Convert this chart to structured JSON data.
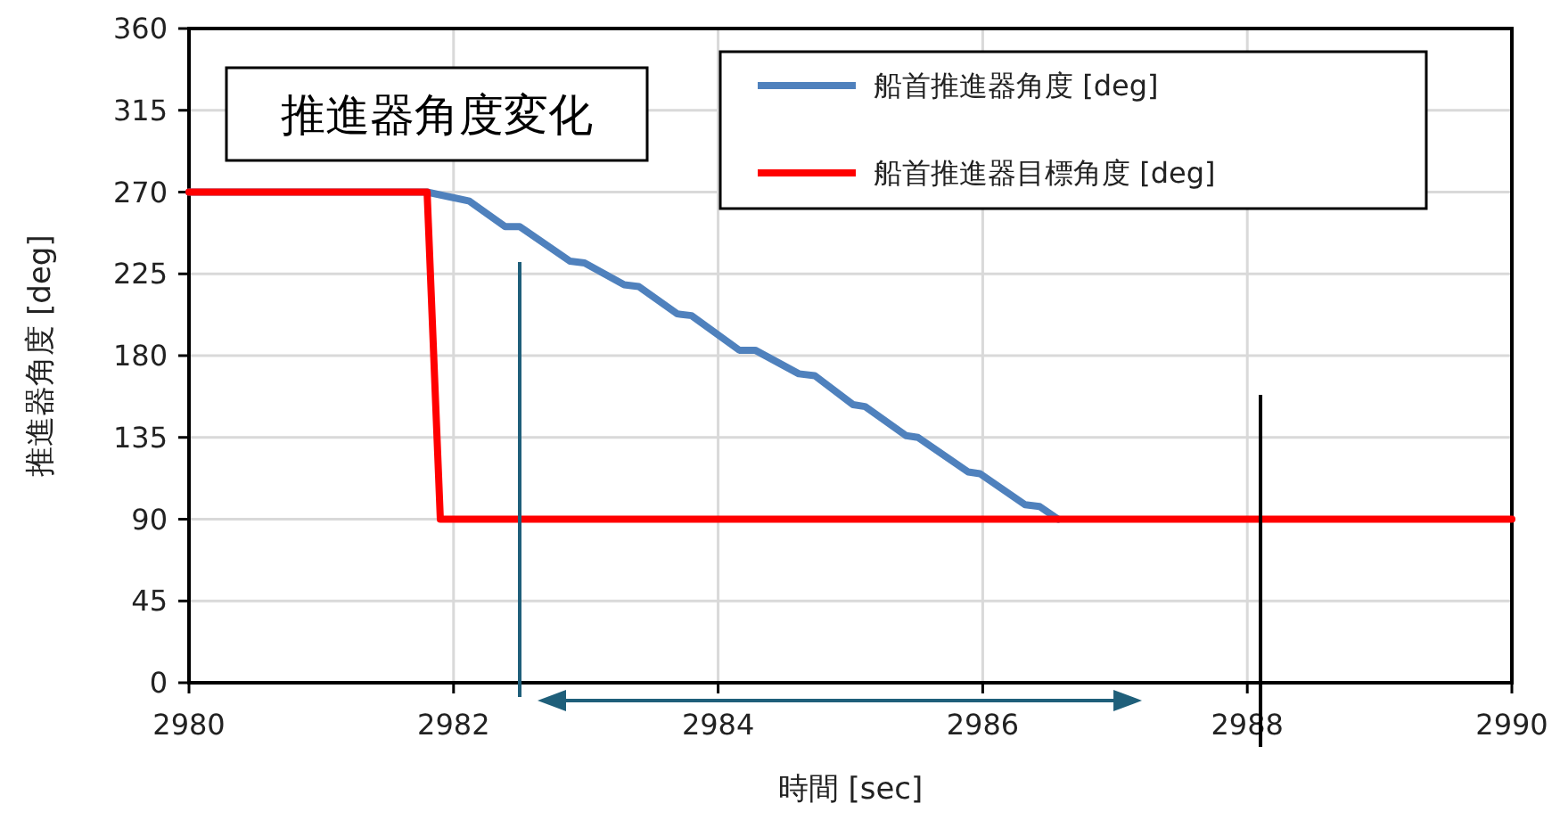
{
  "chart_data": {
    "type": "line",
    "title": "推進器角度変化",
    "xlabel": "時間 [sec]",
    "ylabel": "推進器角度 [deg]",
    "xlim": [
      2980,
      2990
    ],
    "xticks": [
      2980,
      2982,
      2984,
      2986,
      2988,
      2990
    ],
    "ylim": [
      0,
      360
    ],
    "yticks": [
      0,
      45,
      90,
      135,
      180,
      225,
      270,
      315,
      360
    ],
    "grid": true,
    "legend": "top right",
    "line_style": "solid",
    "marker": "none",
    "series": [
      {
        "name": "船首推進器角度 [deg]",
        "color": "#4f81bd",
        "x": [
          2980,
          2981.8,
          2982.12,
          2982.39,
          2982.5,
          2982.88,
          2982.99,
          2983.29,
          2983.4,
          2983.69,
          2983.8,
          2984.16,
          2984.28,
          2984.61,
          2984.73,
          2985.02,
          2985.11,
          2985.42,
          2985.51,
          2985.89,
          2985.98,
          2986.32,
          2986.43,
          2986.57
        ],
        "values": [
          270,
          270,
          265,
          251,
          251,
          232,
          231,
          219,
          218,
          203,
          202,
          183,
          183,
          170,
          169,
          153,
          152,
          136,
          135,
          116,
          115,
          98,
          97,
          90
        ]
      },
      {
        "name": "船首推進器目標角度 [deg]",
        "color": "#ff0000",
        "x": [
          2980,
          2981.8,
          2981.9,
          2990
        ],
        "values": [
          270,
          270,
          90,
          90
        ]
      }
    ],
    "ref_lines": [
      {
        "axis": "x",
        "value": 2982.5,
        "color": "#1f5f7a"
      },
      {
        "axis": "x",
        "value": 2988.1,
        "color": "#000000"
      }
    ]
  }
}
